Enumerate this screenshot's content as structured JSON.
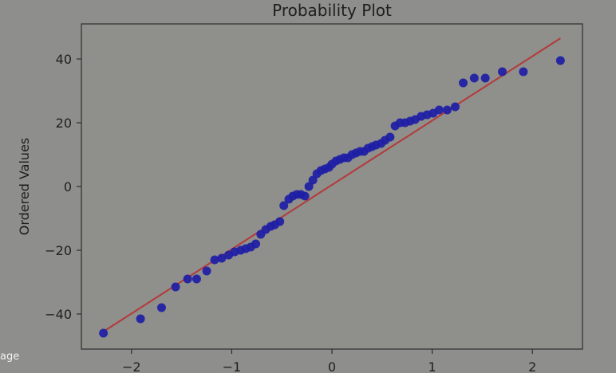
{
  "chart_data": {
    "type": "scatter",
    "title": "Probability Plot",
    "xlabel": "",
    "ylabel": "Ordered Values",
    "xlim": [
      -2.5,
      2.5
    ],
    "ylim": [
      -51,
      51
    ],
    "xticks": [
      -2,
      -1,
      0,
      1,
      2
    ],
    "yticks": [
      -40,
      -20,
      0,
      20,
      40
    ],
    "grid": false,
    "colors": {
      "points": "#1e1ea6",
      "fit_line": "#b33a3a",
      "axes_bg": "#8f8f8c",
      "frame": "#2e2e2e"
    },
    "series": [
      {
        "x": [
          -2.28,
          -1.91,
          -1.7,
          -1.56,
          -1.44,
          -1.35,
          -1.25,
          -1.17,
          -1.1,
          -1.03,
          -0.97,
          -0.91,
          -0.86,
          -0.81,
          -0.76,
          -0.71,
          -0.66,
          -0.61,
          -0.57,
          -0.52,
          -0.48,
          -0.43,
          -0.39,
          -0.35,
          -0.31,
          -0.27,
          -0.23,
          -0.19,
          -0.15,
          -0.11,
          -0.07,
          -0.03,
          0.0,
          0.04,
          0.08,
          0.12,
          0.16,
          0.2,
          0.24,
          0.28,
          0.32,
          0.36,
          0.4,
          0.44,
          0.49,
          0.53,
          0.58,
          0.63,
          0.68,
          0.73,
          0.78,
          0.83,
          0.89,
          0.95,
          1.01,
          1.07,
          1.15,
          1.23,
          1.31,
          1.42,
          1.53,
          1.7,
          1.91,
          2.28
        ],
        "y": [
          -46,
          -41.5,
          -38,
          -31.5,
          -29,
          -29,
          -26.5,
          -23,
          -22.5,
          -21.5,
          -20.5,
          -20,
          -19.5,
          -19,
          -18,
          -15,
          -13.5,
          -12.5,
          -12,
          -11,
          -6,
          -4,
          -3,
          -2.5,
          -2.5,
          -3,
          0,
          2,
          4,
          5,
          5.5,
          6,
          7,
          8,
          8.5,
          9,
          9,
          10,
          10.5,
          11,
          11,
          12,
          12.5,
          13,
          13.5,
          14.5,
          15.5,
          19,
          20,
          20,
          20.5,
          21,
          22,
          22.5,
          23,
          24,
          24,
          25,
          32.5,
          34,
          34,
          36,
          36,
          39.5
        ]
      }
    ],
    "fit_line": {
      "x": [
        -2.28,
        2.28
      ],
      "y": [
        -45.5,
        46.5
      ]
    },
    "corner_label": "age"
  }
}
